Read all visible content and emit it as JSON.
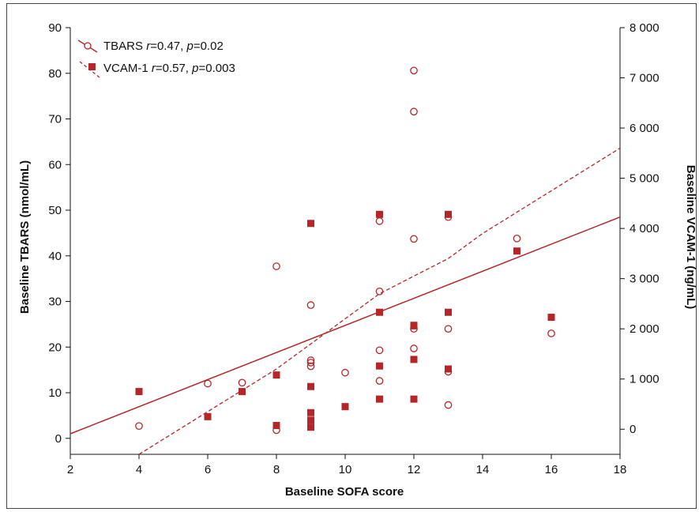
{
  "chart_data": {
    "type": "scatter",
    "xlabel": "Baseline SOFA score",
    "ylabel_left": "Baseline TBARS (nmol/mL)",
    "ylabel_right": "Baseline VCAM-1 (ng/mL)",
    "xlim": [
      2,
      18
    ],
    "ylim_left": [
      -3.5,
      90
    ],
    "ylim_right": [
      -500,
      8000
    ],
    "x_ticks": [
      2,
      4,
      6,
      8,
      10,
      12,
      14,
      16,
      18
    ],
    "x_tick_labels": [
      "2",
      "4",
      "6",
      "8",
      "10",
      "12",
      "14",
      "16",
      "18"
    ],
    "y_left_ticks": [
      0,
      10,
      20,
      30,
      40,
      50,
      60,
      70,
      80,
      90
    ],
    "y_left_tick_labels": [
      "0",
      "10",
      "20",
      "30",
      "40",
      "50",
      "60",
      "70",
      "80",
      "90"
    ],
    "y_right_ticks": [
      0,
      1000,
      2000,
      3000,
      4000,
      5000,
      6000,
      7000,
      8000
    ],
    "y_right_tick_labels": [
      "0",
      "1 000",
      "2 000",
      "3 000",
      "4 000",
      "5 000",
      "6 000",
      "7 000",
      "8 000"
    ],
    "legend_position": "top-left",
    "color": "#b5262b",
    "series": [
      {
        "name": "TBARS",
        "legend_label": "TBARS ",
        "r_sym": "r",
        "r_val": "=0.47, ",
        "p_sym": "p",
        "p_val": "=0.02",
        "axis": "left",
        "marker": "open-circle",
        "x": [
          4,
          6,
          7,
          8,
          8,
          9,
          9,
          9,
          9,
          10,
          11,
          11,
          11,
          11,
          12,
          12,
          12,
          12,
          12,
          13,
          13,
          13,
          13,
          15,
          16
        ],
        "y": [
          2.7,
          12,
          12.2,
          1.8,
          37.7,
          15.8,
          17.1,
          16.6,
          29.2,
          14.4,
          32.2,
          47.6,
          19.3,
          12.6,
          80.6,
          71.6,
          43.7,
          24,
          19.7,
          48.5,
          24,
          14.6,
          7.3,
          43.8,
          23
        ],
        "fit": {
          "style": "solid",
          "x": [
            2,
            18
          ],
          "y": [
            1,
            48.5
          ]
        }
      },
      {
        "name": "VCAM-1",
        "legend_label": "VCAM-1 ",
        "r_sym": "r",
        "r_val": "=0.57, ",
        "p_sym": "p",
        "p_val": "=0.003",
        "axis": "right",
        "marker": "filled-square",
        "x": [
          4,
          6,
          7,
          8,
          8,
          9,
          9,
          9,
          9,
          9,
          10,
          11,
          11,
          11,
          11,
          12,
          12,
          12,
          12,
          13,
          13,
          13,
          15,
          16
        ],
        "y": [
          750,
          250,
          750,
          1080,
          75,
          4100,
          850,
          180,
          40,
          330,
          450,
          2330,
          1260,
          600,
          4280,
          2070,
          1390,
          600,
          2060,
          4280,
          2330,
          1200,
          3550,
          2230
        ],
        "fit": {
          "style": "dashed",
          "x": [
            4,
            8,
            11,
            13,
            14,
            18
          ],
          "y": [
            -500,
            1200,
            2700,
            3400,
            3900,
            5600
          ]
        }
      }
    ]
  }
}
